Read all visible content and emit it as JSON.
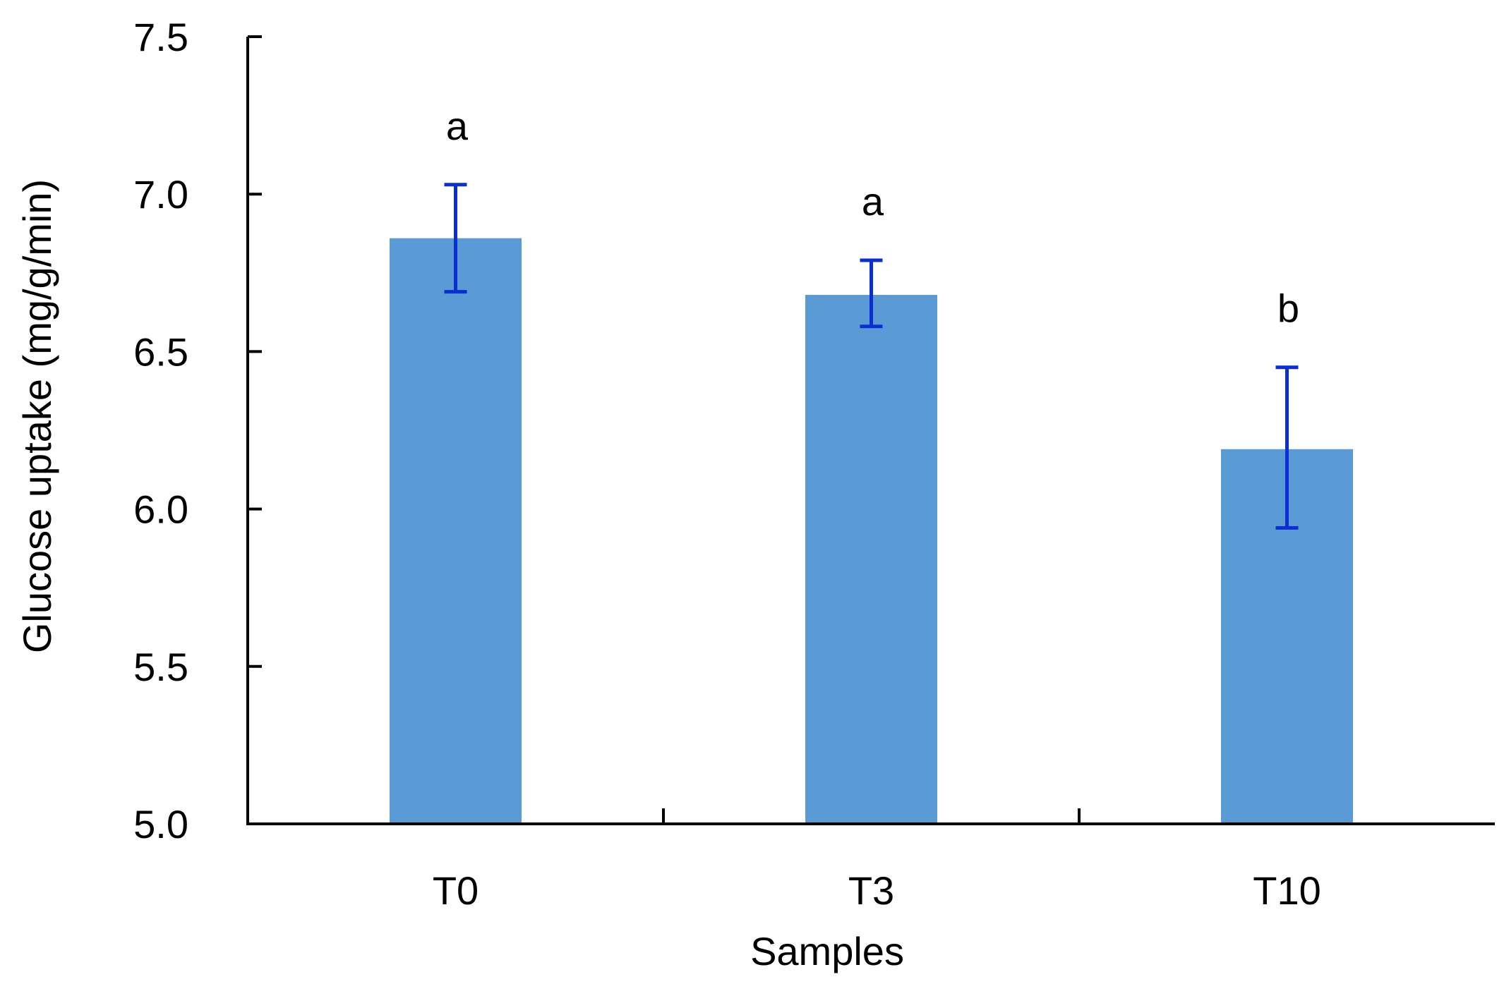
{
  "chart_data": {
    "type": "bar",
    "title": "",
    "xlabel": "Samples",
    "ylabel": "Glucose uptake (mg/g/min)",
    "categories": [
      "T0",
      "T3",
      "T10"
    ],
    "values": [
      6.86,
      6.68,
      6.19
    ],
    "error_upper": [
      7.03,
      6.79,
      6.45
    ],
    "error_lower": [
      6.69,
      6.58,
      5.94
    ],
    "significance": [
      "a",
      "a",
      "b"
    ],
    "ylim": [
      5.0,
      7.5
    ],
    "yticks": [
      5.0,
      5.5,
      6.0,
      6.5,
      7.0,
      7.5
    ],
    "ytick_labels": [
      "5.0",
      "5.5",
      "6.0",
      "6.5",
      "7.0",
      "7.5"
    ],
    "grid": false,
    "legend": "none",
    "colors": {
      "bar": "#5b9bd5",
      "error_bar": "#0a2ed1",
      "axis": "#000000"
    }
  }
}
